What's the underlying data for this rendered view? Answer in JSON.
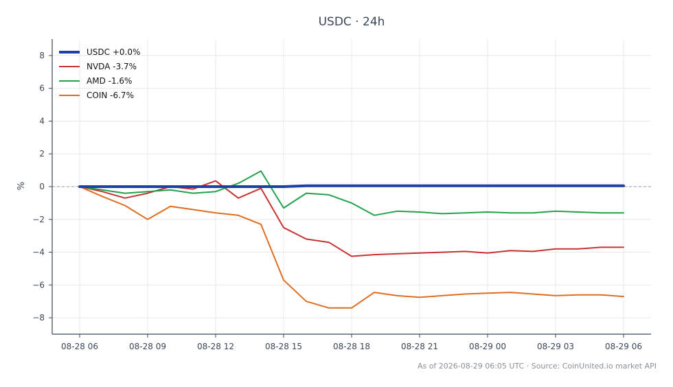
{
  "chart_data": {
    "type": "line",
    "title": "USDC · 24h",
    "xlabel": "",
    "ylabel": "%",
    "x": [
      "08-28 06",
      "08-28 07",
      "08-28 08",
      "08-28 09",
      "08-28 10",
      "08-28 11",
      "08-28 12",
      "08-28 13",
      "08-28 14",
      "08-28 15",
      "08-28 16",
      "08-28 17",
      "08-28 18",
      "08-28 19",
      "08-28 20",
      "08-28 21",
      "08-28 22",
      "08-28 23",
      "08-29 00",
      "08-29 01",
      "08-29 02",
      "08-29 03",
      "08-29 04",
      "08-29 05",
      "08-29 06"
    ],
    "x_ticks": [
      "08-28 06",
      "08-28 09",
      "08-28 12",
      "08-28 15",
      "08-28 18",
      "08-28 21",
      "08-29 00",
      "08-29 03",
      "08-29 06"
    ],
    "ylim": [
      -9,
      9
    ],
    "y_ticks": [
      "8",
      "6",
      "4",
      "2",
      "0",
      "−2",
      "−4",
      "−6",
      "−8"
    ],
    "grid": true,
    "zero_line": true,
    "legend_position": "top-left",
    "series": [
      {
        "name": "USDC +0.0%",
        "color": "#1f3fa8",
        "width": 4,
        "values": [
          0.0,
          0.0,
          0.0,
          0.0,
          0.0,
          0.0,
          0.0,
          0.0,
          0.0,
          0.0,
          0.05,
          0.05,
          0.05,
          0.05,
          0.05,
          0.05,
          0.05,
          0.05,
          0.05,
          0.05,
          0.05,
          0.05,
          0.05,
          0.05,
          0.05
        ]
      },
      {
        "name": "NVDA -3.7%",
        "color": "#c83232",
        "width": 2,
        "values": [
          0.0,
          -0.3,
          -0.7,
          -0.4,
          0.0,
          -0.15,
          0.35,
          -0.7,
          -0.1,
          -2.5,
          -3.2,
          -3.4,
          -4.25,
          -4.15,
          -4.1,
          -4.05,
          -4.0,
          -3.95,
          -4.05,
          -3.9,
          -3.95,
          -3.8,
          -3.8,
          -3.7,
          -3.7
        ]
      },
      {
        "name": "AMD -1.6%",
        "color": "#22a04a",
        "width": 2,
        "values": [
          0.0,
          -0.2,
          -0.4,
          -0.3,
          -0.2,
          -0.4,
          -0.3,
          0.2,
          0.95,
          -1.3,
          -0.4,
          -0.5,
          -1.0,
          -1.75,
          -1.5,
          -1.55,
          -1.65,
          -1.6,
          -1.55,
          -1.6,
          -1.6,
          -1.5,
          -1.55,
          -1.6,
          -1.6
        ]
      },
      {
        "name": "COIN -6.7%",
        "color": "#e06c1f",
        "width": 2,
        "values": [
          0.0,
          -0.6,
          -1.15,
          -2.0,
          -1.2,
          -1.4,
          -1.6,
          -1.75,
          -2.3,
          -5.7,
          -7.0,
          -7.4,
          -7.4,
          -6.45,
          -6.65,
          -6.75,
          -6.65,
          -6.55,
          -6.5,
          -6.45,
          -6.55,
          -6.65,
          -6.6,
          -6.6,
          -6.7
        ]
      }
    ]
  },
  "footer": {
    "text": "As of 2026-08-29 06:05 UTC · Source: CoinUnited.io market API"
  }
}
